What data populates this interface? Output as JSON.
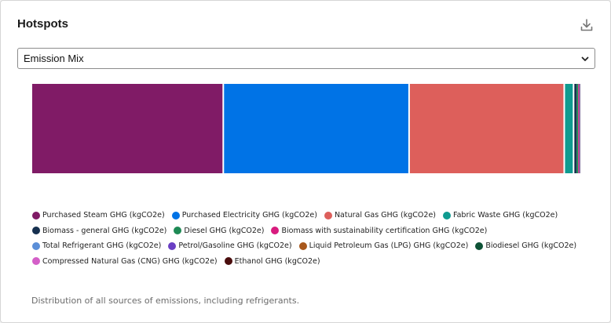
{
  "card": {
    "title": "Hotspots",
    "download_icon": "download-icon",
    "footnote": "Distribution of all sources of emissions, including refrigerants."
  },
  "select": {
    "value": "Emission Mix",
    "icon": "chevron-down-icon"
  },
  "chart_data": {
    "type": "bar",
    "orientation": "horizontal-stacked-100%",
    "grid": false,
    "legend_placement": "bottom",
    "series": [
      {
        "name": "Purchased Steam GHG (kgCO2e)",
        "value": 35.0,
        "color": "#801b66"
      },
      {
        "name": "Purchased Electricity GHG (kgCO2e)",
        "value": 33.9,
        "color": "#0073e6"
      },
      {
        "name": "Natural Gas GHG (kgCO2e)",
        "value": 28.3,
        "color": "#dd5f5b"
      },
      {
        "name": "Fabric Waste GHG (kgCO2e)",
        "value": 1.7,
        "color": "#0f9b90"
      },
      {
        "name": "Biomass - general GHG (kgCO2e)",
        "value": 0.4,
        "color": "#16304f"
      },
      {
        "name": "Diesel GHG (kgCO2e)",
        "value": 0.3,
        "color": "#1e8a55"
      },
      {
        "name": "Biomass with sustainability certification GHG (kgCO2e)",
        "value": 0.2,
        "color": "#d81b7e"
      },
      {
        "name": "Total Refrigerant GHG (kgCO2e)",
        "value": 0.1,
        "color": "#5b8fd8"
      },
      {
        "name": "Petrol/Gasoline GHG (kgCO2e)",
        "value": 0.05,
        "color": "#6a3fc4"
      },
      {
        "name": "Liquid Petroleum Gas (LPG) GHG (kgCO2e)",
        "value": 0.02,
        "color": "#a8581c"
      },
      {
        "name": "Biodiesel GHG (kgCO2e)",
        "value": 0.01,
        "color": "#0d5236"
      },
      {
        "name": "Compressed Natural Gas (CNG) GHG (kgCO2e)",
        "value": 0.01,
        "color": "#d45fc8"
      },
      {
        "name": "Ethanol GHG (kgCO2e)",
        "value": 0.01,
        "color": "#4a0d0d"
      }
    ],
    "legend_rows": [
      [
        0,
        1,
        2,
        3
      ],
      [
        4,
        5,
        6
      ],
      [
        7,
        8,
        9,
        10
      ],
      [
        11,
        12
      ]
    ]
  }
}
